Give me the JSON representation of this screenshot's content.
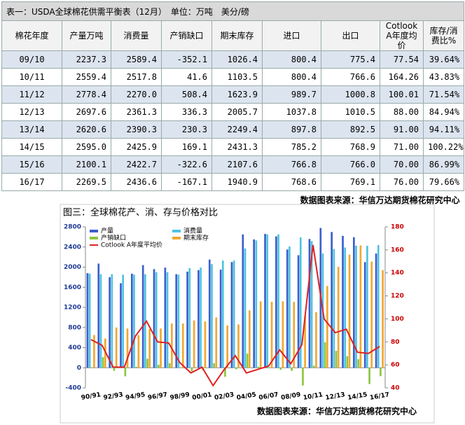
{
  "table": {
    "title": "表一：USDA全球棉花供需平衡表（12月）　单位：万吨　美分/磅",
    "headers": [
      "棉花年度",
      "产量万吨",
      "消费量",
      "产销缺口",
      "期末库存",
      "进口",
      "出口",
      "Cotlook A年度均价",
      "库存/消费比%"
    ],
    "rows": [
      [
        "09/10",
        "2237.3",
        "2589.4",
        "-352.1",
        "1026.4",
        "800.4",
        "775.4",
        "77.54",
        "39.64%"
      ],
      [
        "10/11",
        "2559.4",
        "2517.8",
        "41.6",
        "1103.5",
        "800.4",
        "766.6",
        "164.26",
        "43.83%"
      ],
      [
        "11/12",
        "2778.4",
        "2270.0",
        "508.4",
        "1623.9",
        "989.7",
        "1000.8",
        "100.01",
        "71.54%"
      ],
      [
        "12/13",
        "2697.6",
        "2361.3",
        "336.3",
        "2005.7",
        "1037.8",
        "1010.5",
        "88.00",
        "84.94%"
      ],
      [
        "13/14",
        "2620.6",
        "2390.3",
        "230.3",
        "2249.4",
        "897.8",
        "892.5",
        "91.00",
        "94.11%"
      ],
      [
        "14/15",
        "2595.0",
        "2425.9",
        "169.1",
        "2431.3",
        "785.2",
        "768.9",
        "71.00",
        "100.22%"
      ],
      [
        "15/16",
        "2100.1",
        "2422.7",
        "-322.6",
        "2107.6",
        "766.8",
        "766.0",
        "70.00",
        "86.99%"
      ],
      [
        "16/17",
        "2269.5",
        "2436.6",
        "-167.1",
        "1940.9",
        "768.6",
        "769.1",
        "76.00",
        "79.66%"
      ]
    ],
    "source": "数据图表来源：华信万达期货棉花研究中心"
  },
  "chart_data": {
    "type": "bar",
    "title": "图三：全球棉花产、消、存与价格对比",
    "source": "数据图表来源：华信万达期货棉花研究中心",
    "categories": [
      "90/91",
      null,
      "92/93",
      null,
      "94/95",
      null,
      "96/97",
      null,
      "98/99",
      null,
      "00/01",
      null,
      "02/03",
      null,
      "04/05",
      null,
      "06/07",
      null,
      "08/09",
      null,
      "10/11",
      null,
      "12/13",
      null,
      "14/15",
      null,
      "16/17"
    ],
    "series": [
      {
        "name": "产量",
        "color": "#3a5fcd",
        "values": [
          1880,
          2070,
          1800,
          1680,
          1870,
          2040,
          1960,
          1990,
          1860,
          1910,
          1940,
          2150,
          1950,
          2100,
          2650,
          2550,
          2660,
          2610,
          2350,
          2237,
          2559,
          2778,
          2698,
          2621,
          2595,
          2100,
          2270
        ]
      },
      {
        "name": "消费量",
        "color": "#4fc3e0",
        "values": [
          1870,
          1860,
          1860,
          1850,
          1850,
          1860,
          1900,
          1900,
          1850,
          1980,
          1990,
          2060,
          2130,
          2130,
          2370,
          2530,
          2650,
          2650,
          2410,
          2589,
          2518,
          2270,
          2361,
          2390,
          2426,
          2423,
          2437
        ]
      },
      {
        "name": "产销缺口",
        "color": "#8cc63f",
        "values": [
          10,
          210,
          -60,
          -170,
          20,
          180,
          60,
          90,
          10,
          -70,
          -50,
          90,
          -180,
          -30,
          280,
          20,
          10,
          -40,
          -60,
          -352,
          42,
          508,
          336,
          230,
          169,
          -323,
          -167
        ]
      },
      {
        "name": "期末库存",
        "color": "#f0a830",
        "values": [
          650,
          580,
          800,
          780,
          650,
          770,
          780,
          880,
          880,
          940,
          920,
          1000,
          840,
          860,
          1140,
          1320,
          1310,
          1320,
          1310,
          1026,
          1104,
          1624,
          2006,
          2249,
          2431,
          2108,
          1941
        ]
      },
      {
        "name": "Cotlook A年度平均价",
        "color": "#e02020",
        "type": "line",
        "axis": "y2",
        "values": [
          82,
          77,
          58,
          58,
          85,
          98,
          80,
          79,
          62,
          53,
          58,
          42,
          56,
          68,
          53,
          56,
          59,
          73,
          61,
          77.54,
          164.26,
          100.01,
          88,
          91,
          71,
          70,
          76
        ]
      }
    ],
    "ylim": [
      -400,
      2800
    ],
    "yticks": [
      -400,
      0,
      400,
      800,
      1200,
      1600,
      2000,
      2400,
      2800
    ],
    "y2lim": [
      40,
      180
    ],
    "y2ticks": [
      40,
      60,
      80,
      100,
      120,
      140,
      160,
      180
    ]
  }
}
